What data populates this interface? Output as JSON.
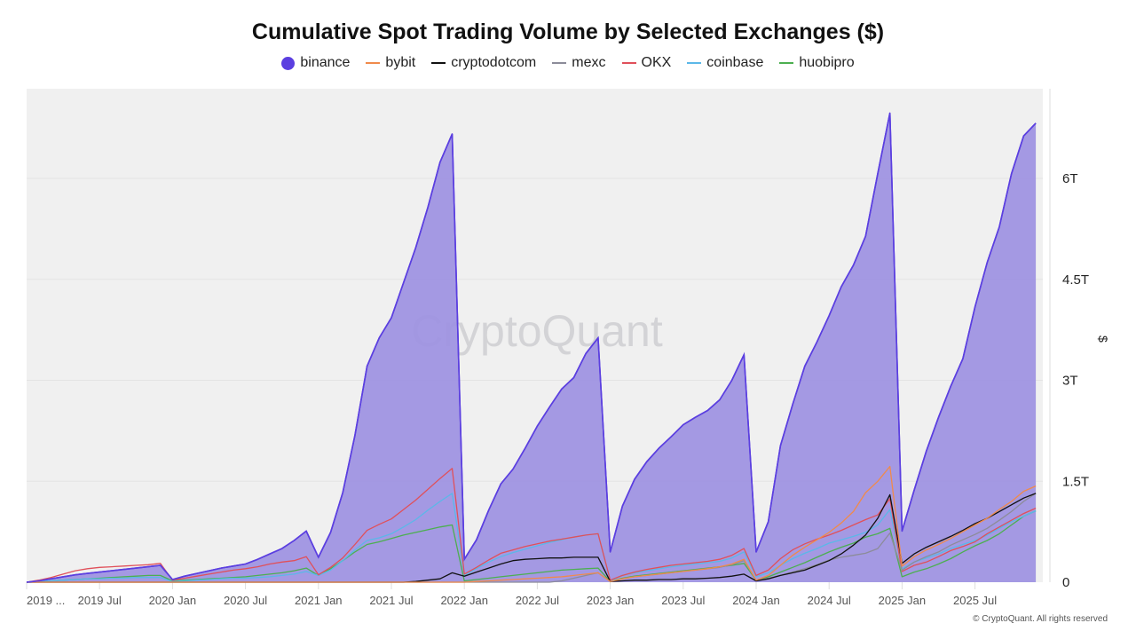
{
  "chart_data": {
    "type": "area",
    "title": "Cumulative Spot Trading Volume by Selected Exchanges ($)",
    "ylabel": "$",
    "ylim": [
      0,
      7.3
    ],
    "y_unit": "T",
    "yticks": [
      {
        "v": 0,
        "label": "0"
      },
      {
        "v": 1.5,
        "label": "1.5T"
      },
      {
        "v": 3,
        "label": "3T"
      },
      {
        "v": 4.5,
        "label": "4.5T"
      },
      {
        "v": 6,
        "label": "6T"
      }
    ],
    "x_start": "2019-01",
    "x_frequency": "monthly",
    "xticks": [
      {
        "m": 0,
        "label": "2019 ..."
      },
      {
        "m": 6,
        "label": "2019 Jul"
      },
      {
        "m": 12,
        "label": "2020 Jan"
      },
      {
        "m": 18,
        "label": "2020 Jul"
      },
      {
        "m": 24,
        "label": "2021 Jan"
      },
      {
        "m": 30,
        "label": "2021 Jul"
      },
      {
        "m": 36,
        "label": "2022 Jan"
      },
      {
        "m": 42,
        "label": "2022 Jul"
      },
      {
        "m": 48,
        "label": "2023 Jan"
      },
      {
        "m": 54,
        "label": "2023 Jul"
      },
      {
        "m": 60,
        "label": "2024 Jan"
      },
      {
        "m": 66,
        "label": "2024 Jul"
      },
      {
        "m": 72,
        "label": "2025 Jan"
      },
      {
        "m": 78,
        "label": "2025 Jul"
      }
    ],
    "grid": true,
    "legend_position": "top",
    "watermark": "CryptoQuant",
    "series": [
      {
        "name": "binance",
        "color": "#5b3fe0",
        "fill": "#9f94e2",
        "style": "area",
        "values": [
          0,
          0.02,
          0.05,
          0.08,
          0.11,
          0.13,
          0.15,
          0.17,
          0.19,
          0.21,
          0.23,
          0.25,
          0.04,
          0.09,
          0.13,
          0.17,
          0.21,
          0.24,
          0.27,
          0.34,
          0.42,
          0.5,
          0.62,
          0.76,
          0.37,
          0.74,
          1.33,
          2.18,
          3.21,
          3.63,
          3.93,
          4.45,
          4.97,
          5.57,
          6.24,
          6.66,
          0.34,
          0.63,
          1.07,
          1.46,
          1.68,
          1.99,
          2.32,
          2.6,
          2.87,
          3.04,
          3.4,
          3.63,
          0.45,
          1.13,
          1.53,
          1.79,
          1.99,
          2.16,
          2.34,
          2.45,
          2.55,
          2.71,
          3.0,
          3.38,
          0.45,
          0.9,
          2.03,
          2.64,
          3.21,
          3.57,
          3.96,
          4.39,
          4.71,
          5.14,
          6.07,
          6.97,
          0.76,
          1.37,
          1.95,
          2.45,
          2.91,
          3.32,
          4.09,
          4.75,
          5.28,
          6.07,
          6.63,
          6.82
        ]
      },
      {
        "name": "bybit",
        "color": "#f08a4b",
        "style": "line",
        "values": [
          0,
          0,
          0,
          0,
          0,
          0,
          0,
          0,
          0,
          0,
          0,
          0,
          0,
          0,
          0,
          0,
          0,
          0,
          0,
          0,
          0,
          0,
          0,
          0,
          0,
          0,
          0,
          0,
          0,
          0,
          0,
          0,
          0,
          0,
          0,
          0,
          0,
          0.01,
          0.02,
          0.03,
          0.04,
          0.05,
          0.06,
          0.07,
          0.08,
          0.1,
          0.12,
          0.14,
          0.01,
          0.05,
          0.08,
          0.1,
          0.12,
          0.14,
          0.16,
          0.18,
          0.2,
          0.23,
          0.27,
          0.34,
          0.03,
          0.1,
          0.25,
          0.4,
          0.52,
          0.63,
          0.74,
          0.88,
          1.05,
          1.33,
          1.5,
          1.72,
          0.24,
          0.38,
          0.48,
          0.56,
          0.65,
          0.75,
          0.85,
          0.95,
          1.08,
          1.2,
          1.35,
          1.43
        ]
      },
      {
        "name": "cryptodotcom",
        "color": "#111111",
        "style": "line",
        "values": [
          0,
          0,
          0,
          0,
          0,
          0,
          0,
          0,
          0,
          0,
          0,
          0,
          0,
          0,
          0,
          0,
          0,
          0,
          0,
          0,
          0,
          0,
          0,
          0,
          0,
          0,
          0,
          0,
          0,
          0,
          0,
          0,
          0.01,
          0.03,
          0.05,
          0.14,
          0.09,
          0.15,
          0.21,
          0.27,
          0.32,
          0.34,
          0.35,
          0.36,
          0.36,
          0.37,
          0.37,
          0.37,
          0.01,
          0.02,
          0.03,
          0.03,
          0.04,
          0.04,
          0.05,
          0.05,
          0.06,
          0.07,
          0.09,
          0.12,
          0.02,
          0.05,
          0.1,
          0.14,
          0.18,
          0.25,
          0.32,
          0.42,
          0.55,
          0.7,
          0.95,
          1.3,
          0.28,
          0.42,
          0.52,
          0.6,
          0.68,
          0.77,
          0.87,
          0.95,
          1.05,
          1.15,
          1.25,
          1.32
        ]
      },
      {
        "name": "mexc",
        "color": "#8c8c99",
        "style": "line",
        "values": [
          0,
          0,
          0,
          0,
          0,
          0,
          0,
          0,
          0,
          0,
          0,
          0,
          0,
          0,
          0,
          0,
          0,
          0,
          0,
          0,
          0,
          0,
          0,
          0,
          0,
          0,
          0,
          0,
          0,
          0,
          0,
          0,
          0,
          0,
          0,
          0,
          0,
          0,
          0,
          0,
          0,
          0,
          0,
          0,
          0.02,
          0.06,
          0.1,
          0.14,
          0.01,
          0.05,
          0.08,
          0.1,
          0.12,
          0.14,
          0.16,
          0.18,
          0.2,
          0.22,
          0.26,
          0.32,
          0.03,
          0.06,
          0.1,
          0.15,
          0.2,
          0.26,
          0.33,
          0.37,
          0.4,
          0.43,
          0.5,
          0.73,
          0.18,
          0.3,
          0.38,
          0.45,
          0.55,
          0.63,
          0.71,
          0.8,
          0.92,
          1.05,
          1.2,
          1.32
        ]
      },
      {
        "name": "OKX",
        "color": "#e0505a",
        "style": "line",
        "values": [
          0,
          0.03,
          0.07,
          0.12,
          0.17,
          0.2,
          0.22,
          0.23,
          0.24,
          0.25,
          0.26,
          0.28,
          0.03,
          0.06,
          0.09,
          0.12,
          0.15,
          0.18,
          0.2,
          0.23,
          0.27,
          0.3,
          0.32,
          0.38,
          0.11,
          0.22,
          0.36,
          0.56,
          0.77,
          0.86,
          0.94,
          1.08,
          1.22,
          1.38,
          1.54,
          1.69,
          0.12,
          0.22,
          0.33,
          0.43,
          0.48,
          0.53,
          0.57,
          0.61,
          0.64,
          0.67,
          0.7,
          0.72,
          0.03,
          0.1,
          0.15,
          0.19,
          0.22,
          0.25,
          0.27,
          0.29,
          0.31,
          0.34,
          0.4,
          0.5,
          0.1,
          0.18,
          0.35,
          0.48,
          0.57,
          0.64,
          0.7,
          0.77,
          0.85,
          0.93,
          1.0,
          1.24,
          0.16,
          0.25,
          0.3,
          0.38,
          0.47,
          0.53,
          0.6,
          0.72,
          0.82,
          0.92,
          1.02,
          1.1
        ]
      },
      {
        "name": "coinbase",
        "color": "#5bb8e8",
        "style": "line",
        "values": [
          0,
          0.01,
          0.02,
          0.03,
          0.04,
          0.05,
          0.05,
          0.06,
          0.06,
          0.07,
          0.07,
          0.07,
          0.01,
          0.02,
          0.03,
          0.04,
          0.05,
          0.06,
          0.06,
          0.07,
          0.08,
          0.1,
          0.12,
          0.16,
          0.1,
          0.18,
          0.32,
          0.48,
          0.62,
          0.66,
          0.72,
          0.82,
          0.93,
          1.07,
          1.2,
          1.32,
          0.1,
          0.2,
          0.3,
          0.38,
          0.44,
          0.49,
          0.54,
          0.59,
          0.63,
          0.67,
          0.7,
          0.72,
          0.02,
          0.1,
          0.14,
          0.17,
          0.2,
          0.23,
          0.25,
          0.27,
          0.29,
          0.31,
          0.36,
          0.45,
          0.08,
          0.14,
          0.25,
          0.35,
          0.43,
          0.5,
          0.58,
          0.63,
          0.68,
          0.74,
          0.85,
          1.08,
          0.2,
          0.3,
          0.36,
          0.42,
          0.5,
          0.56,
          0.62,
          0.7,
          0.8,
          0.9,
          0.98,
          1.06
        ]
      },
      {
        "name": "huobipro",
        "color": "#4caf50",
        "style": "line",
        "values": [
          0,
          0.01,
          0.02,
          0.03,
          0.04,
          0.05,
          0.06,
          0.07,
          0.08,
          0.09,
          0.1,
          0.1,
          0.02,
          0.03,
          0.04,
          0.05,
          0.06,
          0.07,
          0.08,
          0.1,
          0.12,
          0.14,
          0.17,
          0.21,
          0.1,
          0.2,
          0.32,
          0.45,
          0.56,
          0.6,
          0.65,
          0.7,
          0.74,
          0.78,
          0.82,
          0.85,
          0.02,
          0.04,
          0.06,
          0.08,
          0.1,
          0.12,
          0.14,
          0.16,
          0.18,
          0.19,
          0.2,
          0.21,
          0.01,
          0.06,
          0.09,
          0.11,
          0.13,
          0.15,
          0.17,
          0.19,
          0.21,
          0.23,
          0.25,
          0.28,
          0.03,
          0.08,
          0.15,
          0.22,
          0.29,
          0.37,
          0.45,
          0.52,
          0.58,
          0.67,
          0.72,
          0.8,
          0.08,
          0.15,
          0.2,
          0.27,
          0.35,
          0.45,
          0.54,
          0.62,
          0.72,
          0.85,
          0.98,
          1.06
        ]
      }
    ]
  },
  "footer": {
    "copyright": "© CryptoQuant. All rights reserved"
  }
}
